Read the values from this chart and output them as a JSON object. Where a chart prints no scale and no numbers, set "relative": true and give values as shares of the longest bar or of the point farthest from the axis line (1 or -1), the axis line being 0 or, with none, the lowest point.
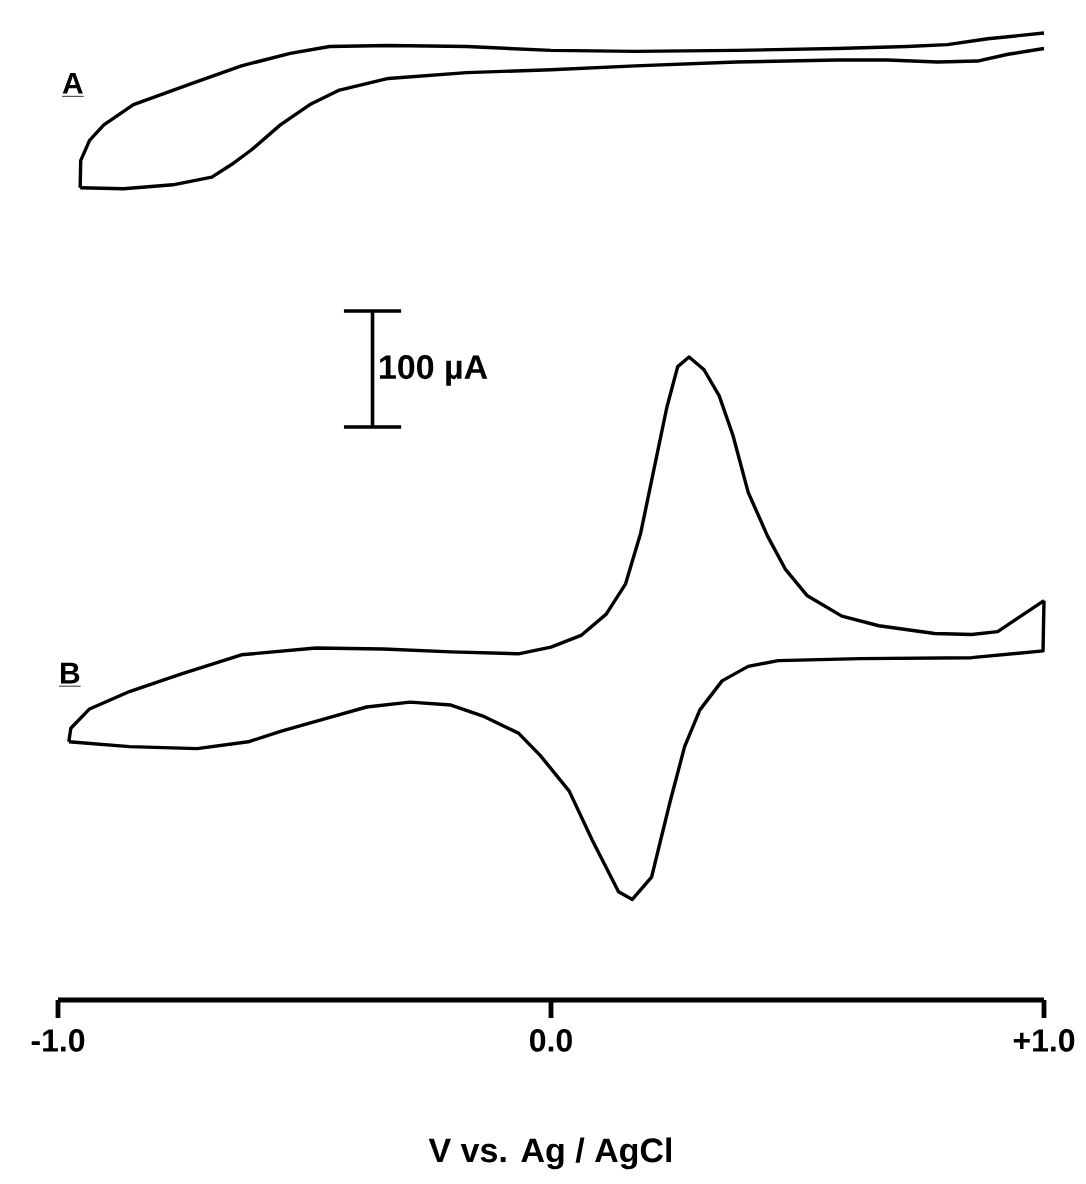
{
  "chart_data": {
    "type": "line",
    "xlabel": "V vs. Ag / AgCl",
    "relative": true,
    "tick_labels": "x",
    "xlim": [
      -1,
      1
    ],
    "xticks": [
      {
        "value": -1,
        "label": "-1.0"
      },
      {
        "value": 0,
        "label": "0.0"
      },
      {
        "value": 1,
        "label": "+1.0"
      }
    ],
    "annotations": [
      "A",
      "B",
      "100 µA"
    ],
    "series": [
      {
        "color": "#000000",
        "x": [
          -0.955,
          -0.954,
          -0.936,
          -0.907,
          -0.847,
          -0.728,
          -0.628,
          -0.529,
          -0.449,
          -0.33,
          -0.171,
          0,
          0.171,
          0.376,
          0.58,
          0.722,
          0.804,
          0.886,
          1.0
        ],
        "values": [
          0.84,
          0.868,
          0.889,
          0.905,
          0.926,
          0.948,
          0.966,
          0.979,
          0.986,
          0.987,
          0.986,
          0.982,
          0.981,
          0.982,
          0.984,
          0.986,
          0.988,
          0.994,
          1.0
        ]
      },
      {
        "color": "#000000",
        "x": [
          1.0,
          0.927,
          0.865,
          0.784,
          0.682,
          0.58,
          0.376,
          0.171,
          0,
          -0.171,
          -0.33,
          -0.429,
          -0.489,
          -0.549,
          -0.608,
          -0.648,
          -0.688,
          -0.767,
          -0.867,
          -0.955
        ],
        "values": [
          0.984,
          0.978,
          0.971,
          0.97,
          0.972,
          0.972,
          0.97,
          0.966,
          0.962,
          0.959,
          0.953,
          0.941,
          0.926,
          0.905,
          0.879,
          0.864,
          0.851,
          0.843,
          0.839,
          0.84
        ]
      },
      {
        "color": "#000000",
        "x": [
          -0.978,
          -0.974,
          -0.936,
          -0.855,
          -0.751,
          -0.628,
          -0.477,
          -0.34,
          -0.203,
          -0.066,
          0,
          0.061,
          0.112,
          0.151,
          0.182,
          0.204,
          0.235,
          0.257,
          0.28,
          0.31,
          0.341,
          0.369,
          0.4,
          0.439,
          0.476,
          0.52,
          0.59,
          0.665,
          0.778,
          0.853,
          0.906,
          0.953,
          1.0
        ],
        "values": [
          0.267,
          0.281,
          0.301,
          0.319,
          0.337,
          0.357,
          0.364,
          0.363,
          0.36,
          0.358,
          0.365,
          0.377,
          0.399,
          0.43,
          0.483,
          0.537,
          0.613,
          0.655,
          0.665,
          0.652,
          0.625,
          0.584,
          0.525,
          0.48,
          0.445,
          0.418,
          0.397,
          0.387,
          0.379,
          0.378,
          0.381,
          0.397,
          0.413
        ]
      },
      {
        "color": "#000000",
        "x": [
          1.0,
          0.998,
          0.853,
          0.627,
          0.461,
          0.4,
          0.347,
          0.302,
          0.271,
          0.241,
          0.204,
          0.165,
          0.137,
          0.084,
          0.037,
          -0.022,
          -0.066,
          -0.135,
          -0.203,
          -0.286,
          -0.374,
          -0.443,
          -0.547,
          -0.614,
          -0.718,
          -0.855,
          -0.978
        ],
        "values": [
          0.413,
          0.361,
          0.354,
          0.353,
          0.351,
          0.345,
          0.33,
          0.3,
          0.262,
          0.204,
          0.127,
          0.104,
          0.112,
          0.165,
          0.216,
          0.253,
          0.276,
          0.293,
          0.305,
          0.308,
          0.303,
          0.293,
          0.278,
          0.267,
          0.26,
          0.262,
          0.267
        ]
      }
    ]
  }
}
